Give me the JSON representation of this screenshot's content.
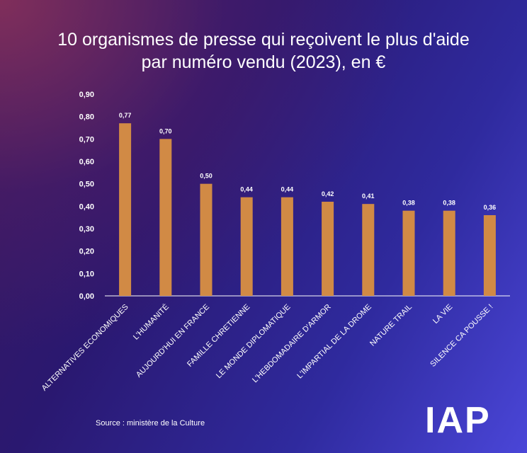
{
  "chart_data": {
    "type": "bar",
    "title_lines": [
      "10 organismes de presse qui reçoivent le plus d'aide",
      "par numéro vendu (2023), en €"
    ],
    "categories": [
      "ALTERNATIVES ECONOMIQUES",
      "L'HUMANITÉ",
      "AUJOURD'HUI EN FRANCE",
      "FAMILLE CHRETIENNE",
      "LE MONDE DIPLOMATIQUE",
      "L'HEBDOMADAIRE D'ARMOR",
      "L'IMPARTIAL DE LA DROME",
      "NATURE TRAIL",
      "LA VIE",
      "SILENCE CA POUSSE !"
    ],
    "values": [
      0.77,
      0.7,
      0.5,
      0.44,
      0.44,
      0.42,
      0.41,
      0.38,
      0.38,
      0.36
    ],
    "value_labels": [
      "0,77",
      "0,70",
      "0,50",
      "0,44",
      "0,44",
      "0,42",
      "0,41",
      "0,38",
      "0,38",
      "0,36"
    ],
    "ylim": [
      0,
      0.9
    ],
    "y_ticks": [
      "0,00",
      "0,10",
      "0,20",
      "0,30",
      "0,40",
      "0,50",
      "0,60",
      "0,70",
      "0,80",
      "0,90"
    ],
    "grid": false,
    "bar_color": "#d18a45"
  },
  "source": "Source : ministère de la Culture",
  "logo": "IAP"
}
